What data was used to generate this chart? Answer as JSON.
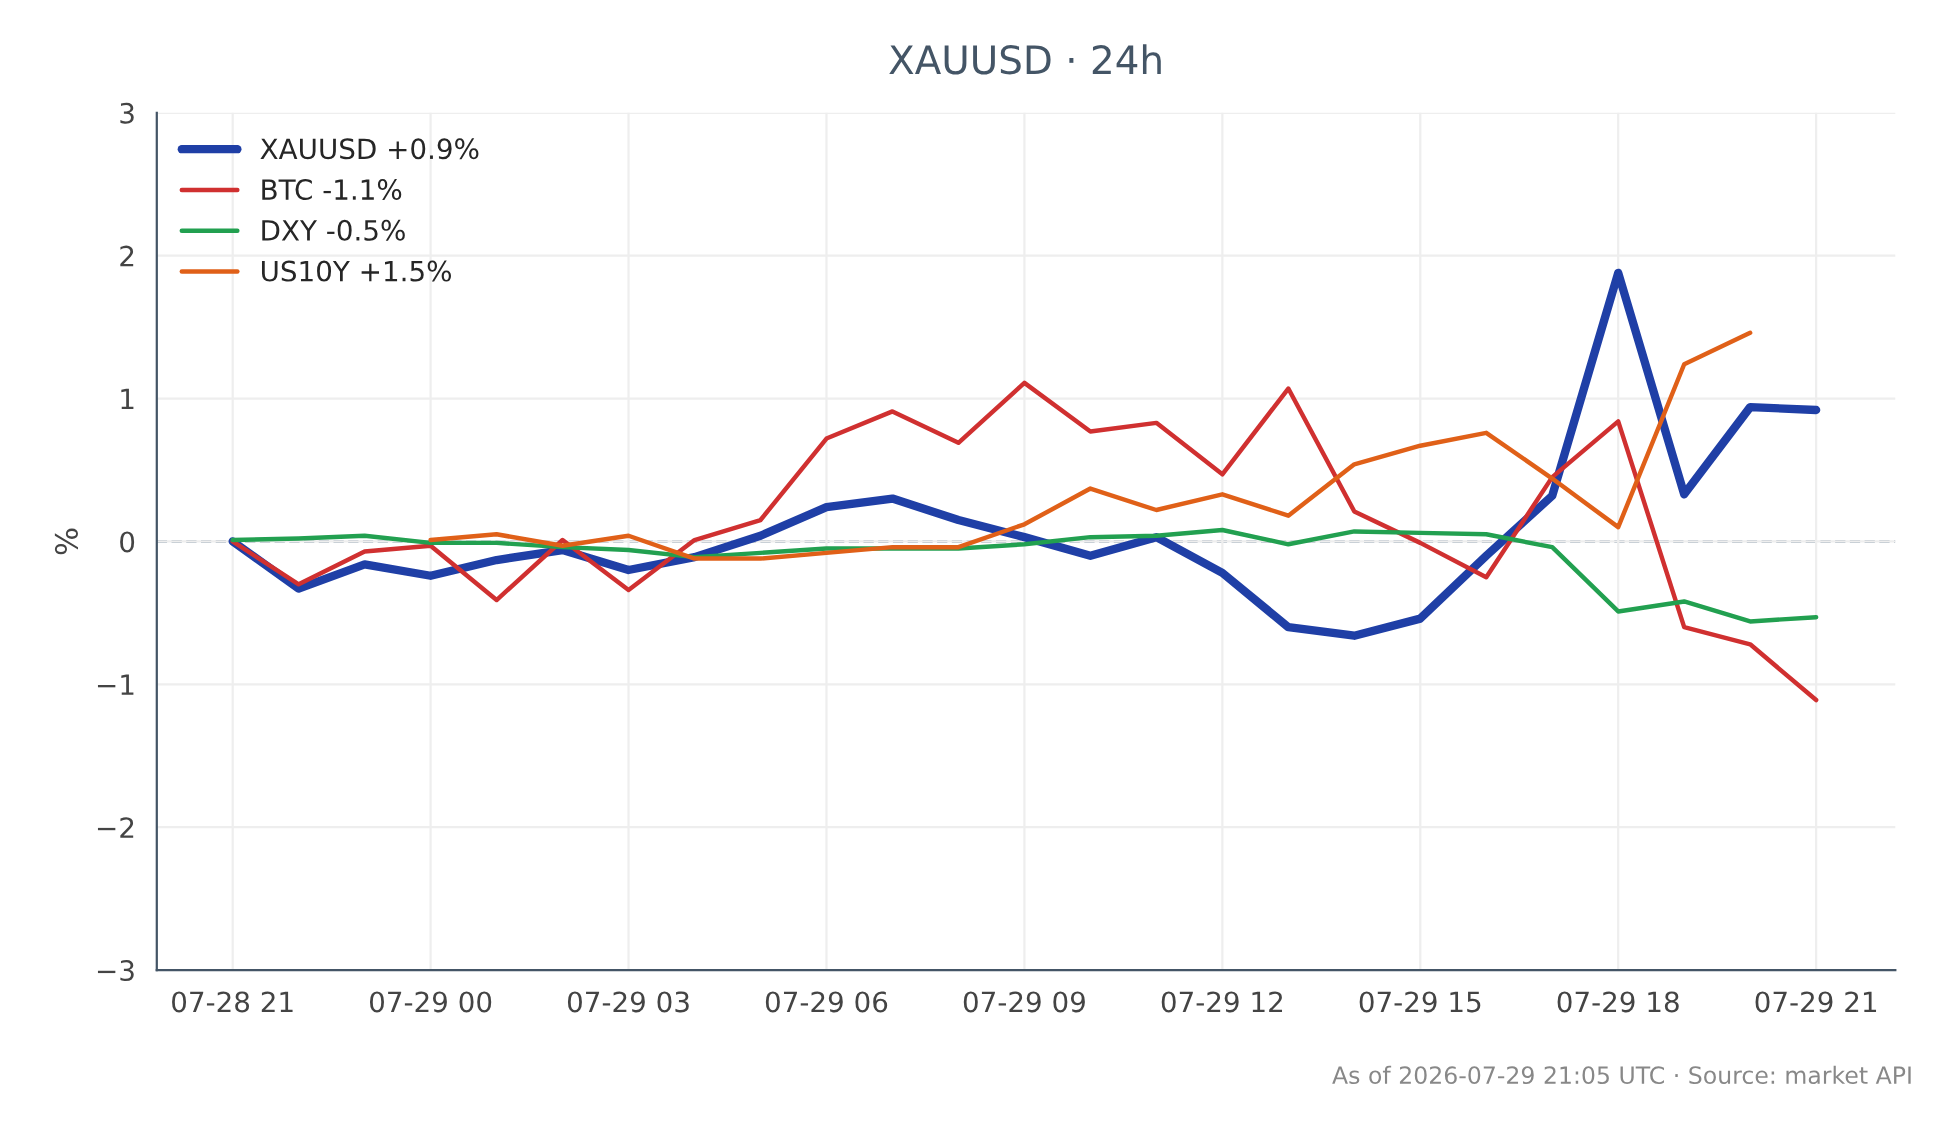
{
  "chart_data": {
    "type": "line",
    "title": "XAUUSD · 24h",
    "ylabel": "%",
    "x": [
      "2026-07-28T21:00",
      "2026-07-28T22:00",
      "2026-07-28T23:00",
      "2026-07-29T00:00",
      "2026-07-29T01:00",
      "2026-07-29T02:00",
      "2026-07-29T03:00",
      "2026-07-29T04:00",
      "2026-07-29T05:00",
      "2026-07-29T06:00",
      "2026-07-29T07:00",
      "2026-07-29T08:00",
      "2026-07-29T09:00",
      "2026-07-29T10:00",
      "2026-07-29T11:00",
      "2026-07-29T12:00",
      "2026-07-29T13:00",
      "2026-07-29T14:00",
      "2026-07-29T15:00",
      "2026-07-29T16:00",
      "2026-07-29T17:00",
      "2026-07-29T18:00",
      "2026-07-29T19:00",
      "2026-07-29T20:00",
      "2026-07-29T21:00"
    ],
    "series": [
      {
        "name": "XAUUSD +0.9%",
        "color": "#1f3fa6",
        "values": [
          0,
          -0.33,
          -0.16,
          -0.24,
          -0.13,
          -0.06,
          -0.2,
          -0.11,
          0.04,
          0.24,
          0.3,
          0.15,
          0.03,
          -0.1,
          0.03,
          -0.22,
          -0.6,
          -0.66,
          -0.54,
          -0.1,
          0.32,
          1.88,
          0.33,
          0.94,
          0.92
        ]
      },
      {
        "name": "BTC -1.1%",
        "color": "#d03030",
        "values": [
          0,
          -0.3,
          -0.07,
          -0.03,
          -0.41,
          0.01,
          -0.34,
          0.01,
          0.15,
          0.72,
          0.91,
          0.69,
          1.11,
          0.77,
          0.83,
          0.47,
          1.07,
          0.21,
          -0.01,
          -0.25,
          0.45,
          0.84,
          -0.6,
          -0.72,
          -1.11
        ]
      },
      {
        "name": "DXY -0.5%",
        "color": "#22a050",
        "values": [
          0.01,
          0.02,
          0.04,
          -0.01,
          -0.01,
          -0.04,
          -0.06,
          -0.11,
          -0.08,
          -0.05,
          -0.05,
          -0.05,
          -0.02,
          0.03,
          0.04,
          0.08,
          -0.02,
          0.07,
          0.06,
          0.05,
          -0.04,
          -0.49,
          -0.42,
          -0.56,
          -0.53
        ]
      },
      {
        "name": "US10Y +1.5%",
        "color": "#e06018",
        "values": [
          null,
          null,
          null,
          0.01,
          0.05,
          -0.03,
          0.04,
          -0.12,
          -0.12,
          -0.08,
          -0.04,
          -0.04,
          0.12,
          0.37,
          0.22,
          0.33,
          0.18,
          0.54,
          0.67,
          0.76,
          0.44,
          0.1,
          1.24,
          1.46,
          null
        ]
      }
    ],
    "xlim": [
      "2026-07-28T19:51",
      "2026-07-29T22:12"
    ],
    "xticks": [
      {
        "value": "2026-07-28T21:00",
        "label": "07-28 21"
      },
      {
        "value": "2026-07-29T00:00",
        "label": "07-29 00"
      },
      {
        "value": "2026-07-29T03:00",
        "label": "07-29 03"
      },
      {
        "value": "2026-07-29T06:00",
        "label": "07-29 06"
      },
      {
        "value": "2026-07-29T09:00",
        "label": "07-29 09"
      },
      {
        "value": "2026-07-29T12:00",
        "label": "07-29 12"
      },
      {
        "value": "2026-07-29T15:00",
        "label": "07-29 15"
      },
      {
        "value": "2026-07-29T18:00",
        "label": "07-29 18"
      },
      {
        "value": "2026-07-29T21:00",
        "label": "07-29 21"
      }
    ],
    "ylim": [
      -3,
      3
    ],
    "yticks": [
      {
        "value": -3,
        "label": "−3"
      },
      {
        "value": -2,
        "label": "−2"
      },
      {
        "value": -1,
        "label": "−1"
      },
      0,
      1,
      2,
      3
    ],
    "ref_lines": [
      {
        "axis": "y",
        "value": 0,
        "color": "#8899aa",
        "line_style": "dashed"
      }
    ],
    "grid": true,
    "legend": "top left",
    "annotations": [
      "As of 2026-07-29 21:05 UTC · Source: market API"
    ]
  }
}
